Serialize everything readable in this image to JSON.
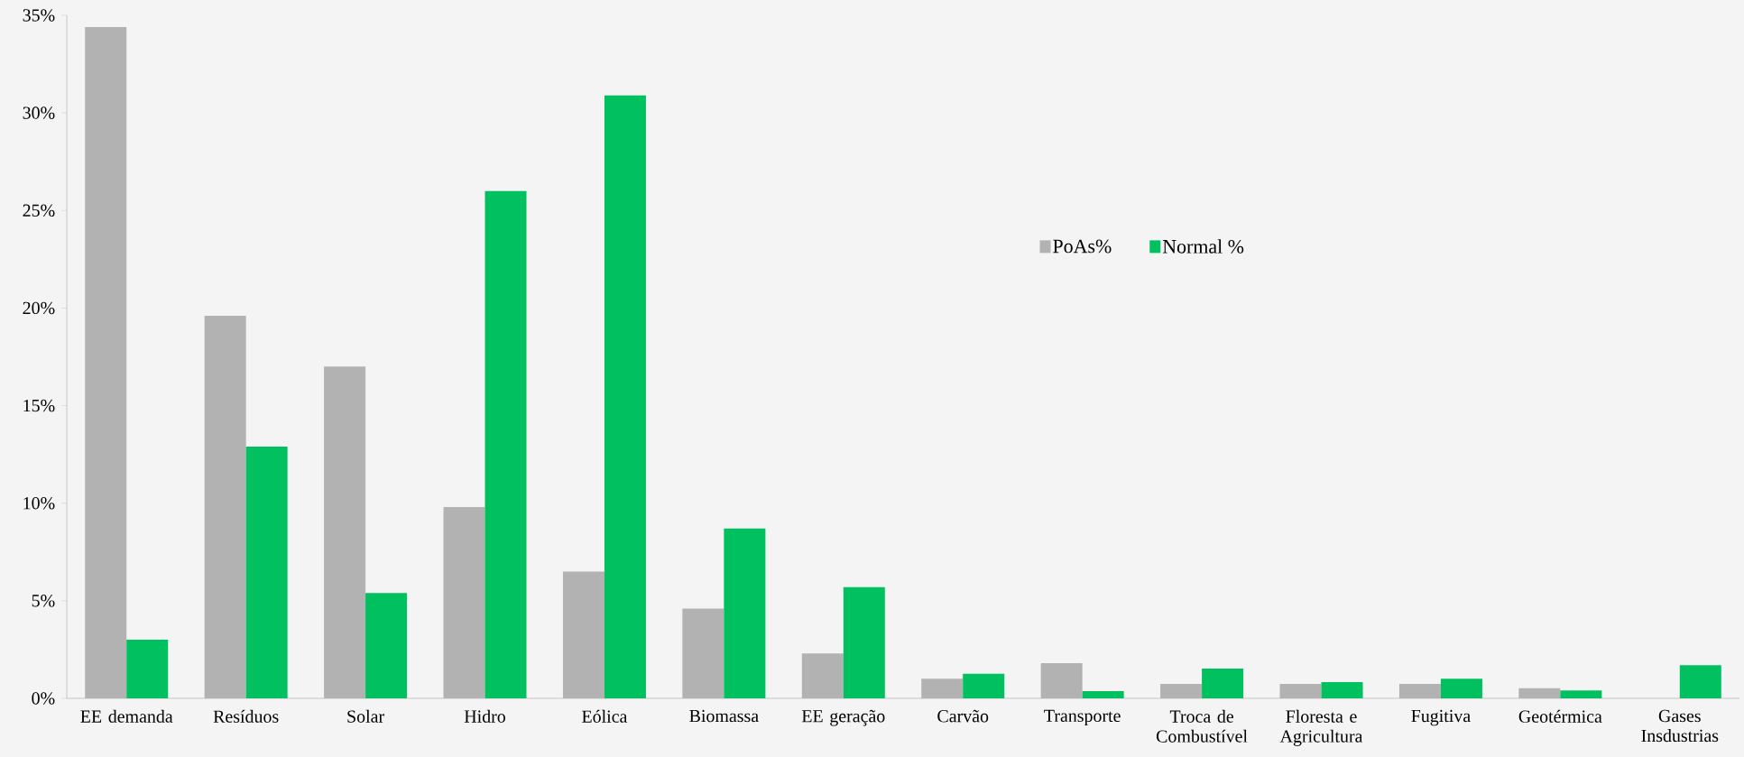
{
  "chart_data": {
    "type": "bar",
    "categories": [
      "EE demanda",
      "Resíduos",
      "Solar",
      "Hidro",
      "Eólica",
      "Biomassa",
      "EE geração",
      "Carvão",
      "Transporte",
      "Troca de Combustível",
      "Floresta e Agricultura",
      "Fugitiva",
      "Geotérmica",
      "Gases Insdustrias"
    ],
    "series": [
      {
        "name": "PoAs%",
        "color": "#b2b2b2",
        "values": [
          34.4,
          19.6,
          17.0,
          9.8,
          6.5,
          4.6,
          2.3,
          1.0,
          1.8,
          0.74,
          0.74,
          0.74,
          0.52,
          null
        ]
      },
      {
        "name": "Normal %",
        "color": "#00c060",
        "values": [
          3.0,
          12.9,
          5.4,
          26.0,
          30.9,
          8.7,
          5.7,
          1.26,
          0.37,
          1.52,
          0.83,
          1.0,
          0.4,
          1.7
        ]
      }
    ],
    "ylim": [
      0,
      35
    ],
    "yticks": [
      {
        "value": 0,
        "label": "0%"
      },
      {
        "value": 5,
        "label": "5%"
      },
      {
        "value": 10,
        "label": "10%"
      },
      {
        "value": 15,
        "label": "15%"
      },
      {
        "value": 20,
        "label": "20%"
      },
      {
        "value": 25,
        "label": "25%"
      },
      {
        "value": 30,
        "label": "30%"
      },
      {
        "value": 35,
        "label": "35%"
      }
    ],
    "grid": false,
    "legend": "center"
  }
}
